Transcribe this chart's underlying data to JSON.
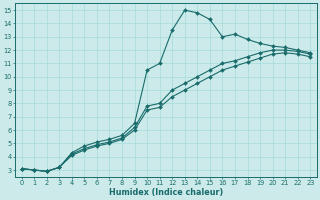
{
  "xlabel": "Humidex (Indice chaleur)",
  "bg_color": "#cceaea",
  "grid_color": "#aadddd",
  "line_color": "#1a6b6b",
  "xlim": [
    -0.5,
    23.5
  ],
  "ylim": [
    2.5,
    15.5
  ],
  "xticks": [
    0,
    1,
    2,
    3,
    4,
    5,
    6,
    7,
    8,
    9,
    10,
    11,
    12,
    13,
    14,
    15,
    16,
    17,
    18,
    19,
    20,
    21,
    22,
    23
  ],
  "yticks": [
    3,
    4,
    5,
    6,
    7,
    8,
    9,
    10,
    11,
    12,
    13,
    14,
    15
  ],
  "line1_x": [
    0,
    1,
    2,
    3,
    4,
    5,
    6,
    7,
    8,
    9,
    10,
    11,
    12,
    13,
    14,
    15,
    16,
    17,
    18,
    19,
    20,
    21,
    22,
    23
  ],
  "line1_y": [
    3.1,
    3.0,
    2.9,
    3.2,
    4.3,
    4.8,
    5.1,
    5.3,
    5.6,
    6.5,
    10.5,
    11.0,
    13.5,
    15.0,
    14.8,
    14.3,
    13.0,
    13.2,
    12.8,
    12.5,
    12.3,
    12.2,
    12.0,
    11.8
  ],
  "line2_x": [
    0,
    1,
    2,
    3,
    4,
    5,
    6,
    7,
    8,
    9,
    10,
    11,
    12,
    13,
    14,
    15,
    16,
    17,
    18,
    19,
    20,
    21,
    22,
    23
  ],
  "line2_y": [
    3.1,
    3.0,
    2.9,
    3.2,
    4.2,
    4.6,
    4.9,
    5.1,
    5.4,
    6.2,
    7.8,
    8.0,
    9.0,
    9.5,
    10.0,
    10.5,
    11.0,
    11.2,
    11.5,
    11.8,
    12.0,
    12.0,
    11.9,
    11.7
  ],
  "line3_x": [
    0,
    1,
    2,
    3,
    4,
    5,
    6,
    7,
    8,
    9,
    10,
    11,
    12,
    13,
    14,
    15,
    16,
    17,
    18,
    19,
    20,
    21,
    22,
    23
  ],
  "line3_y": [
    3.1,
    3.0,
    2.9,
    3.2,
    4.1,
    4.5,
    4.8,
    5.0,
    5.3,
    6.0,
    7.5,
    7.7,
    8.5,
    9.0,
    9.5,
    10.0,
    10.5,
    10.8,
    11.1,
    11.4,
    11.7,
    11.8,
    11.7,
    11.5
  ]
}
